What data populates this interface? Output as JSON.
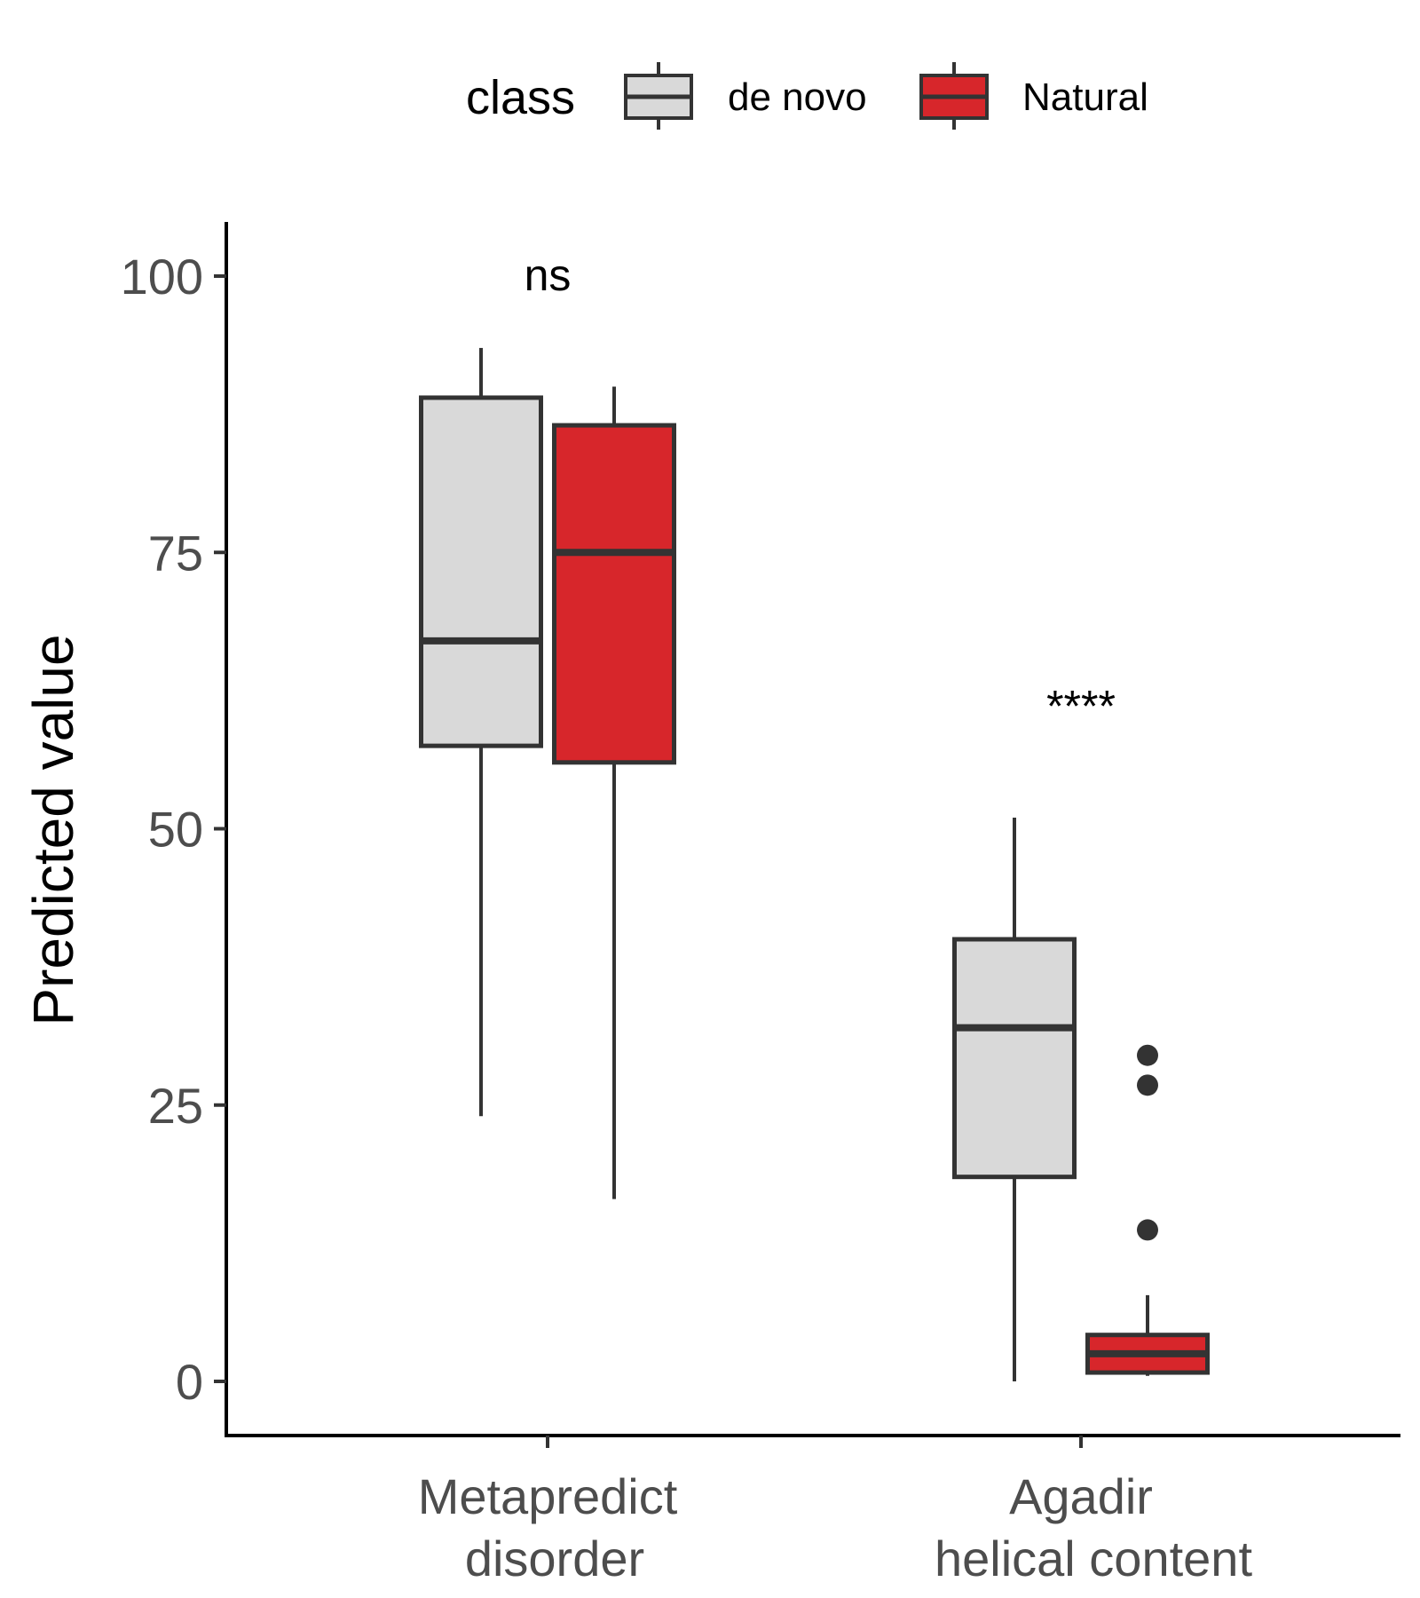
{
  "chart_data": {
    "type": "box",
    "ylabel": "Predicted value",
    "xlabel": "",
    "ylim": [
      -5,
      105
    ],
    "yticks": [
      0,
      25,
      50,
      75,
      100
    ],
    "categories": [
      "Metapredict\ndisorder",
      "Agadir\nhelical content"
    ],
    "legend": {
      "title": "class",
      "position": "top"
    },
    "series": [
      {
        "name": "de novo",
        "color": "#d9d9d9",
        "boxes": [
          {
            "category": "Metapredict\ndisorder",
            "min": 24,
            "q1": 57.5,
            "median": 67,
            "q3": 89,
            "max": 93.5,
            "outliers": []
          },
          {
            "category": "Agadir\nhelical content",
            "min": 0,
            "q1": 18.5,
            "median": 32,
            "q3": 40,
            "max": 51,
            "outliers": []
          }
        ]
      },
      {
        "name": "Natural",
        "color": "#d7262b",
        "boxes": [
          {
            "category": "Metapredict\ndisorder",
            "min": 16.5,
            "q1": 56,
            "median": 75,
            "q3": 86.5,
            "max": 90,
            "outliers": []
          },
          {
            "category": "Agadir\nhelical content",
            "min": 0.5,
            "q1": 0.8,
            "median": 2.5,
            "q3": 4.2,
            "max": 7.8,
            "outliers": [
              29.5,
              26.8,
              13.7
            ]
          }
        ]
      }
    ],
    "annotations": [
      {
        "category": "Metapredict\ndisorder",
        "y": 100,
        "text": "ns"
      },
      {
        "category": "Agadir\nhelical content",
        "y": 61,
        "text": "****"
      }
    ]
  }
}
